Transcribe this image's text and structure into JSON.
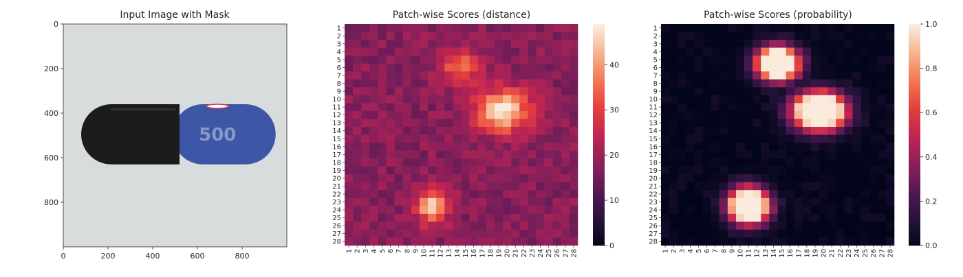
{
  "chart_data": [
    {
      "type": "image",
      "title": "Input Image with Mask",
      "xlim": [
        0,
        1000
      ],
      "ylim": [
        1000,
        0
      ],
      "xticks": [
        0,
        200,
        400,
        600,
        800
      ],
      "yticks": [
        0,
        200,
        400,
        600,
        800
      ],
      "image_content": {
        "background": "#d9dcdc",
        "capsule": {
          "x_range": [
            80,
            950
          ],
          "y_range": [
            360,
            630
          ],
          "left_cap_color": "#1c1c1e",
          "right_body_color": "#3d56a6",
          "imprint": "500"
        }
      }
    },
    {
      "type": "heatmap",
      "title": "Patch-wise Scores (distance)",
      "rows": 28,
      "cols": 28,
      "row_labels": [
        "1",
        "2",
        "3",
        "4",
        "5",
        "6",
        "7",
        "8",
        "9",
        "10",
        "11",
        "12",
        "13",
        "14",
        "15",
        "16",
        "17",
        "18",
        "19",
        "20",
        "21",
        "22",
        "23",
        "24",
        "25",
        "26",
        "27",
        "28"
      ],
      "col_labels": [
        "1",
        "2",
        "3",
        "4",
        "5",
        "6",
        "7",
        "8",
        "9",
        "10",
        "11",
        "12",
        "13",
        "14",
        "15",
        "16",
        "17",
        "18",
        "19",
        "20",
        "21",
        "22",
        "23",
        "24",
        "25",
        "26",
        "27",
        "28"
      ],
      "colormap": "rocket",
      "vmin": 0,
      "vmax": 49,
      "colorbar_ticks": [
        0,
        10,
        20,
        30,
        40
      ],
      "base_value": 18,
      "hotspots": [
        {
          "row": 6,
          "col": 14.5,
          "peak": 37,
          "sigma_r": 1.4,
          "sigma_c": 1.6
        },
        {
          "row": 11.5,
          "col": 19.5,
          "peak": 49,
          "sigma_r": 1.9,
          "sigma_c": 2.3
        },
        {
          "row": 23.5,
          "col": 11,
          "peak": 45,
          "sigma_r": 1.5,
          "sigma_c": 1.4
        }
      ]
    },
    {
      "type": "heatmap",
      "title": "Patch-wise Scores (probability)",
      "rows": 28,
      "cols": 28,
      "row_labels": [
        "1",
        "2",
        "3",
        "4",
        "5",
        "6",
        "7",
        "8",
        "9",
        "10",
        "11",
        "12",
        "13",
        "14",
        "15",
        "16",
        "17",
        "18",
        "19",
        "20",
        "21",
        "22",
        "23",
        "24",
        "25",
        "26",
        "27",
        "28"
      ],
      "col_labels": [
        "1",
        "2",
        "3",
        "4",
        "5",
        "6",
        "7",
        "8",
        "9",
        "10",
        "11",
        "12",
        "13",
        "14",
        "15",
        "16",
        "17",
        "18",
        "19",
        "20",
        "21",
        "22",
        "23",
        "24",
        "25",
        "26",
        "27",
        "28"
      ],
      "colormap": "rocket",
      "vmin": 0.0,
      "vmax": 1.0,
      "colorbar_ticks": [
        "0.0",
        "0.2",
        "0.4",
        "0.6",
        "0.8",
        "1.0"
      ],
      "base_value": 0.0,
      "hotspots": [
        {
          "row": 5.5,
          "col": 14.5,
          "peak": 1.0,
          "sigma_r": 1.4,
          "sigma_c": 1.7
        },
        {
          "row": 11.5,
          "col": 19.5,
          "peak": 1.0,
          "sigma_r": 1.6,
          "sigma_c": 2.1
        },
        {
          "row": 23.5,
          "col": 11,
          "peak": 1.0,
          "sigma_r": 1.5,
          "sigma_c": 1.6
        }
      ]
    }
  ]
}
